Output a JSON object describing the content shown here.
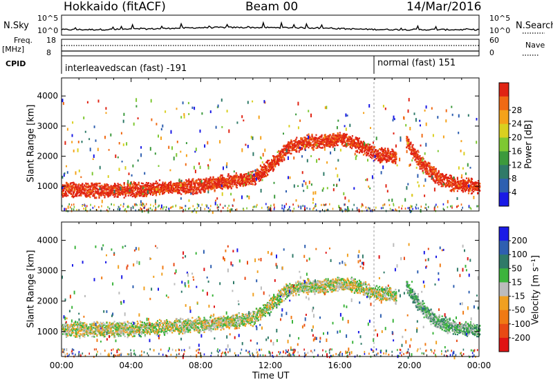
{
  "header": {
    "title": "Hokkaido (fitACF)",
    "beam": "Beam 00",
    "date": "14/Mar/2016"
  },
  "strip_labels": {
    "nsky": "N.Sky",
    "nsky_ticks": [
      "10^5",
      "10^0"
    ],
    "nsearch": "N.Search",
    "freq_top": "Freq.",
    "freq_unit": "[MHz]",
    "freq_ticks": [
      "18",
      "8"
    ],
    "nave": "Nave",
    "nave_ticks": [
      "60",
      "0"
    ],
    "cpid": "CPID",
    "cpid_segments": [
      "interleavedscan (fast) -191",
      "normal (fast) 151"
    ]
  },
  "chart_data": [
    {
      "type": "heatmap",
      "name": "power-panel",
      "ylabel": "Slant Range [km]",
      "xlabel": "",
      "yticks": [
        "1000",
        "2000",
        "3000",
        "4000"
      ],
      "ylim": [
        180,
        4600
      ],
      "xlim": [
        0,
        24
      ],
      "colorbar_label": "Power [dB]",
      "colorbar_ticks": [
        "4",
        "8",
        "12",
        "16",
        "20",
        "24",
        "28"
      ],
      "colors": [
        "#1a1ae6",
        "#2e5fb0",
        "#2f7a68",
        "#3c9a3c",
        "#7ec832",
        "#d9d020",
        "#f5a21a",
        "#f06a14",
        "#e02414"
      ],
      "bands": [
        {
          "hours": [
            0,
            4,
            8,
            11,
            12,
            13,
            14,
            15,
            16,
            17,
            18,
            19.2
          ],
          "range_km": [
            900,
            900,
            1050,
            1300,
            1700,
            2300,
            2500,
            2500,
            2600,
            2400,
            2100,
            2000
          ],
          "level": 8
        },
        {
          "hours": [
            19.8,
            20.5,
            21.5,
            22.5,
            24
          ],
          "range_km": [
            2500,
            1900,
            1350,
            1100,
            1000
          ],
          "level": 8
        }
      ]
    },
    {
      "type": "heatmap",
      "name": "velocity-panel",
      "ylabel": "Slant Range [km]",
      "xlabel": "Time UT",
      "xticks": [
        "00:00",
        "04:00",
        "08:00",
        "12:00",
        "16:00",
        "20:00",
        "00:00"
      ],
      "yticks": [
        "1000",
        "2000",
        "3000",
        "4000"
      ],
      "ylim": [
        180,
        4600
      ],
      "xlim": [
        0,
        24
      ],
      "colorbar_label": "Velocity [m s⁻¹]",
      "colorbar_ticks": [
        "200",
        "100",
        "50",
        "15",
        "-15",
        "-50",
        "-100",
        "-200"
      ],
      "colors": [
        "#1a1ae6",
        "#2e5fb0",
        "#2f7a68",
        "#3cb43c",
        "#bcbcbc",
        "#f0a020",
        "#f07a14",
        "#e84a14",
        "#e01414"
      ],
      "bands": [
        {
          "hours": [
            0,
            4,
            8,
            11,
            12,
            13,
            14,
            15,
            16,
            17,
            18,
            19.2
          ],
          "range_km": [
            1100,
            1100,
            1250,
            1450,
            1900,
            2400,
            2500,
            2500,
            2600,
            2500,
            2300,
            2200
          ],
          "level": 4
        },
        {
          "hours": [
            19.8,
            20.5,
            21.5,
            22.5,
            24
          ],
          "range_km": [
            2500,
            1900,
            1350,
            1150,
            1050
          ],
          "level": 3
        }
      ]
    }
  ]
}
